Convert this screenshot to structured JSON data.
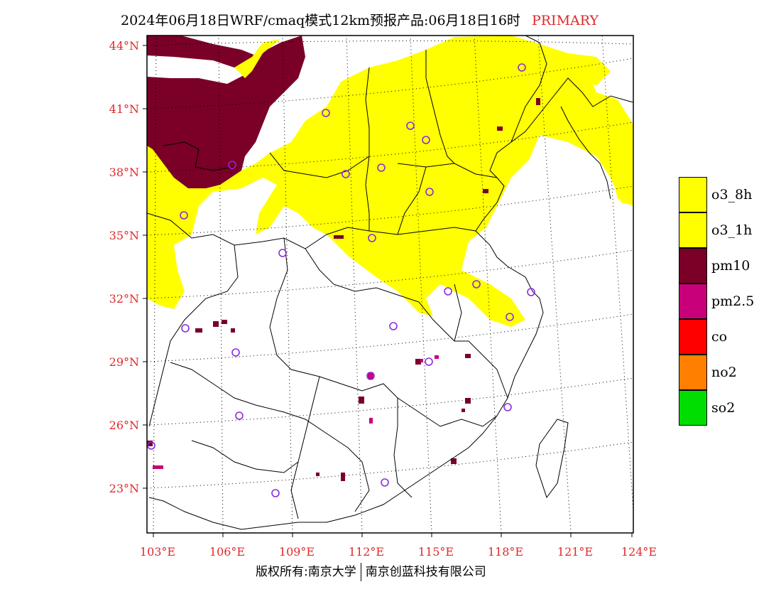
{
  "title": {
    "main": "2024年06月18日WRF/cmaq模式12km预报产品:06月18日16时",
    "mode": "PRIMARY"
  },
  "axes": {
    "lat_labels": [
      "44°N",
      "41°N",
      "38°N",
      "35°N",
      "32°N",
      "29°N",
      "26°N",
      "23°N"
    ],
    "lon_labels": [
      "103°E",
      "106°E",
      "109°E",
      "112°E",
      "115°E",
      "118°E",
      "121°E",
      "124°E"
    ],
    "label_color": "#e0282a"
  },
  "legend": [
    {
      "label": "o3_8h",
      "color": "#ffff00"
    },
    {
      "label": "o3_1h",
      "color": "#ffff00"
    },
    {
      "label": "pm10",
      "color": "#7a0028"
    },
    {
      "label": "pm2.5",
      "color": "#c8007a"
    },
    {
      "label": "co",
      "color": "#ff0000"
    },
    {
      "label": "no2",
      "color": "#ff7f00"
    },
    {
      "label": "so2",
      "color": "#00dd00"
    }
  ],
  "stations_color": "#8a2be2",
  "footer": {
    "left": "版权所有:南京大学",
    "right": "南京创蓝科技有限公司"
  }
}
